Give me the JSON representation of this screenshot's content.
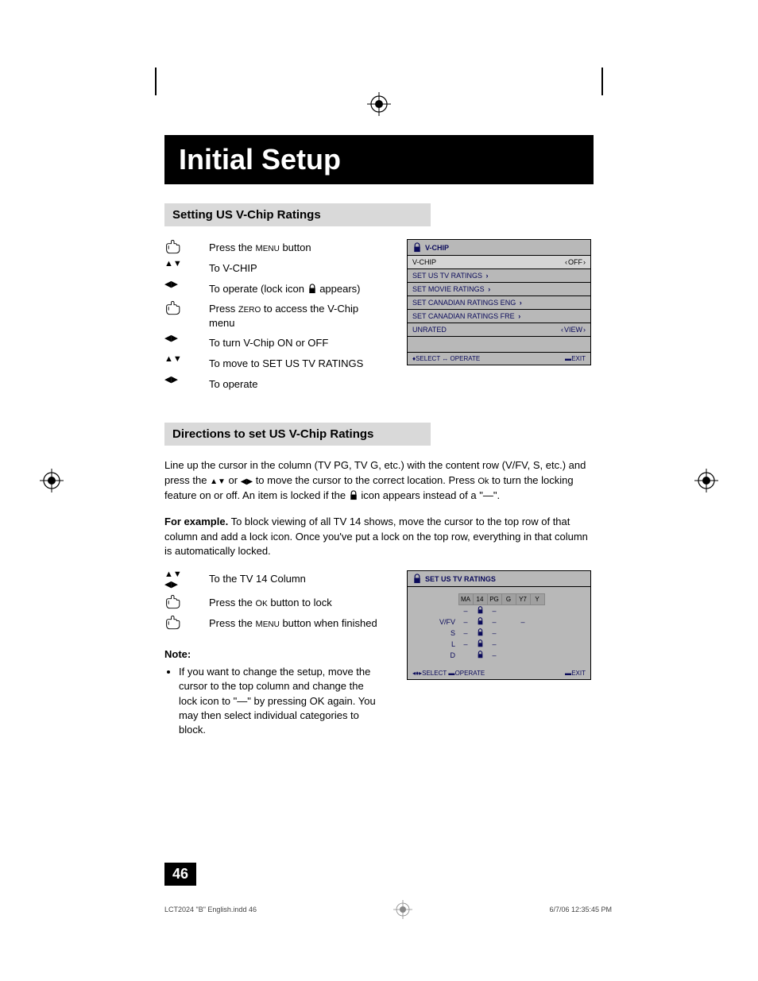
{
  "title": "Initial Setup",
  "section1": {
    "heading": "Setting US V-Chip Ratings",
    "steps": [
      {
        "icon": "hand",
        "text_pre": "Press the ",
        "text_sc": "Menu",
        "text_post": " button"
      },
      {
        "icon": "ud",
        "text_pre": "To V-CHIP"
      },
      {
        "icon": "lr",
        "text_pre": "To operate (lock icon ",
        "lock": true,
        "text_post": " appears)"
      },
      {
        "icon": "hand",
        "text_pre": "Press ",
        "text_sc": "Zero",
        "text_post": " to access the V-Chip menu"
      },
      {
        "icon": "lr",
        "text_pre": "To turn V-Chip ON or OFF"
      },
      {
        "icon": "ud",
        "text_pre": "To move to SET US TV RATINGS"
      },
      {
        "icon": "lr",
        "text_pre": "To operate"
      }
    ]
  },
  "osd1": {
    "title": "V-CHIP",
    "rows": [
      {
        "label": "V-CHIP",
        "value": "OFF",
        "value_style": "lr",
        "highlight": true
      },
      {
        "label": "SET US TV RATINGS",
        "chev": true
      },
      {
        "label": "SET MOVIE RATINGS",
        "chev": true
      },
      {
        "label": "SET CANADIAN RATINGS ENG",
        "chev": true
      },
      {
        "label": "SET CANADIAN RATINGS FRE",
        "chev": true
      },
      {
        "label": "UNRATED",
        "value": "VIEW",
        "value_style": "lr"
      }
    ],
    "foot_left_a": "SELECT",
    "foot_left_b": "OPERATE",
    "foot_right": "EXIT"
  },
  "section2": {
    "heading": "Directions to set US V-Chip Ratings",
    "para1_a": "Line up the cursor in the column (TV PG, TV G, etc.) with the content row (V/FV, S, etc.) and press the ",
    "para1_b": " or ",
    "para1_c": " to move the cursor to the correct location. Press ",
    "para1_ok": "Ok",
    "para1_d": " to turn the locking feature on or off. An item is locked if the ",
    "para1_e": " icon appears instead of a \"—\".",
    "para2_bold": "For example.",
    "para2": " To block viewing of all TV 14 shows, move the cursor to the top row of that column and add a lock icon. Once you've put a lock on the top row, everything in that column is automatically locked.",
    "steps": [
      {
        "icon": "udlr",
        "text_pre": "To the TV 14 Column"
      },
      {
        "icon": "hand",
        "text_pre": "Press the ",
        "text_sc": "Ok",
        "text_post": " button to lock"
      },
      {
        "icon": "hand",
        "text_pre": "Press the ",
        "text_sc": "Menu",
        "text_post": " button when finished"
      }
    ],
    "note_head": "Note:",
    "note": "If you want to change the setup, move the cursor to the top column and change the lock icon to \"—\" by pressing OK again. You may then select individual categories to block."
  },
  "osd2": {
    "title": "SET US TV RATINGS",
    "cols": [
      "MA",
      "14",
      "PG",
      "G",
      "Y7",
      "Y"
    ],
    "rows": [
      {
        "label": "",
        "cells": [
          "–",
          "lock",
          "–",
          "",
          "",
          ""
        ]
      },
      {
        "label": "V/FV",
        "cells": [
          "–",
          "lock",
          "–",
          "",
          "–",
          ""
        ]
      },
      {
        "label": "S",
        "cells": [
          "–",
          "lock",
          "–",
          "",
          "",
          ""
        ]
      },
      {
        "label": "L",
        "cells": [
          "–",
          "lock",
          "–",
          "",
          "",
          ""
        ]
      },
      {
        "label": "D",
        "cells": [
          "",
          "lock",
          "–",
          "",
          "",
          ""
        ]
      }
    ],
    "foot_left_a": "SELECT",
    "foot_left_b": "OPERATE",
    "foot_right": "EXIT"
  },
  "page_number": "46",
  "footer": {
    "left": "LCT2024 \"B\" English.indd   46",
    "right": "6/7/06   12:35:45 PM"
  }
}
